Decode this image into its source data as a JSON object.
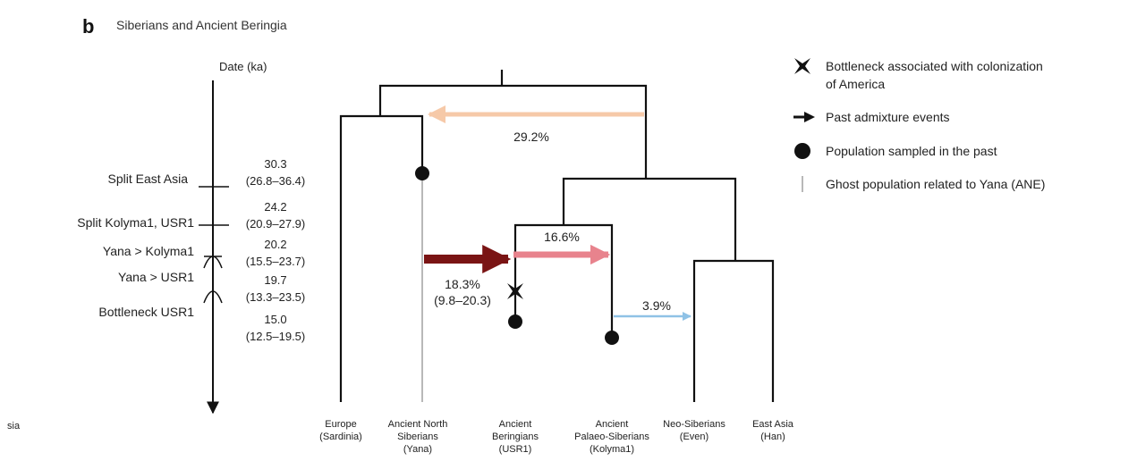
{
  "panel": {
    "letter": "b",
    "title": "Siberians and Ancient Beringia"
  },
  "time_axis": {
    "title": "Date (ka)",
    "cut_text": "sia"
  },
  "events": [
    {
      "label": "Split East Asia",
      "value": "30.3",
      "range": "(26.8–36.4)"
    },
    {
      "label": "Split Kolyma1, USR1",
      "value": "24.2",
      "range": "(20.9–27.9)"
    },
    {
      "label": "Yana > Kolyma1",
      "value": "20.2",
      "range": "(15.5–23.7)"
    },
    {
      "label": "Yana > USR1",
      "value": "19.7",
      "range": "(13.3–23.5)"
    },
    {
      "label": "Bottleneck USR1",
      "value": "15.0",
      "range": "(12.5–19.5)"
    }
  ],
  "populations": [
    {
      "line1": "Europe",
      "line2": "(Sardinia)",
      "line3": ""
    },
    {
      "line1": "Ancient North",
      "line2": "Siberians",
      "line3": "(Yana)"
    },
    {
      "line1": "Ancient",
      "line2": "Beringians",
      "line3": "(USR1)"
    },
    {
      "line1": "Ancient",
      "line2": "Palaeo-Siberians",
      "line3": "(Kolyma1)"
    },
    {
      "line1": "Neo-Siberians",
      "line2": "(Even)",
      "line3": ""
    },
    {
      "line1": "East Asia",
      "line2": "(Han)",
      "line3": ""
    }
  ],
  "admixture": [
    {
      "label": "29.2%",
      "color": "#f6c9a8"
    },
    {
      "label": "16.6%",
      "color": "#e8838d"
    },
    {
      "label": "18.3%",
      "range": "(9.8–20.3)",
      "color": "#7a1414"
    },
    {
      "label": "3.9%",
      "color": "#8fc2e6"
    }
  ],
  "legend": [
    {
      "icon": "star-cross-icon",
      "line1": "Bottleneck associated with colonization",
      "line2": "of America"
    },
    {
      "icon": "arrow-icon",
      "line1": "Past admixture events",
      "line2": ""
    },
    {
      "icon": "dot-icon",
      "line1": "Population sampled in the past",
      "line2": ""
    },
    {
      "icon": "grey-line-icon",
      "line1": "Ghost population related to Yana (ANE)",
      "line2": ""
    }
  ],
  "colors": {
    "tree": "#111111",
    "ghost": "#b8b8b8"
  }
}
